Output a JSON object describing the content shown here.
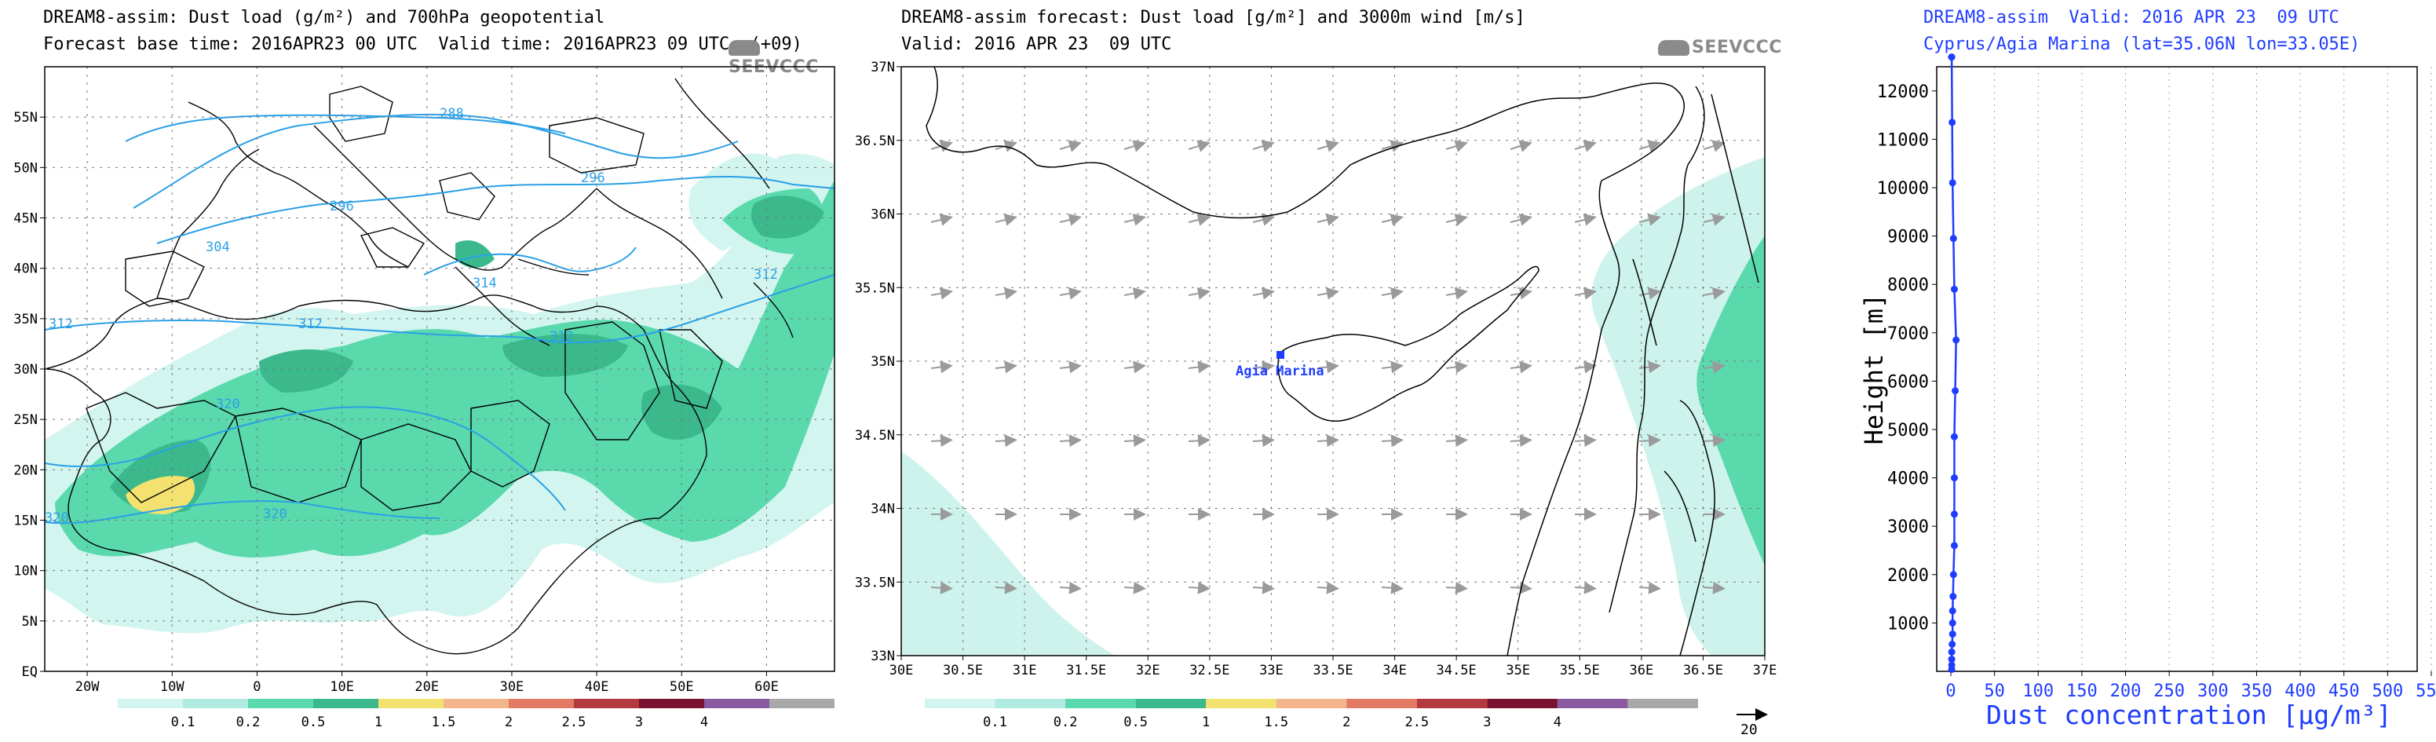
{
  "panel1": {
    "title1": "DREAM8-assim: Dust load (g/m²) and 700hPa geopotential",
    "title2": "Forecast base time: 2016APR23 00 UTC  Valid time: 2016APR23 09 UTC  (+09)",
    "logo": "SEEVCCC"
  },
  "panel2": {
    "title1": "DREAM8-assim forecast: Dust load [g/m²] and 3000m wind [m/s]",
    "title2": "Valid: 2016 APR 23  09 UTC",
    "logo": "SEEVCCC",
    "station_label": "Agia Marina",
    "vector_ref": "20"
  },
  "panel3": {
    "title1": "DREAM8-assim  Valid: 2016 APR 23  09 UTC",
    "title2": "Cyprus/Agia Marina (lat=35.06N lon=33.05E)"
  },
  "colors": {
    "scale": [
      "#d3f5ef",
      "#b0ebe1",
      "#5ad9ad",
      "#3bb98d",
      "#f3e26f",
      "#f2b58c",
      "#e37a63",
      "#b23a3f",
      "#7a1130",
      "#8a5aa0",
      "#a8a8a8"
    ],
    "geopotential": "#2aa0e6",
    "profile": "#1f3dff"
  },
  "colorbar_labels": [
    "0.1",
    "0.2",
    "0.5",
    "1",
    "1.5",
    "2",
    "2.5",
    "3",
    "4"
  ],
  "chart_data": [
    {
      "type": "heatmap",
      "xticks": [
        "20W",
        "10W",
        "0",
        "10E",
        "20E",
        "30E",
        "40E",
        "50E",
        "60E"
      ],
      "yticks": [
        "EQ",
        "5N",
        "10N",
        "15N",
        "20N",
        "25N",
        "30N",
        "35N",
        "40N",
        "45N",
        "50N",
        "55N"
      ],
      "contours": [
        "288",
        "296",
        "304",
        "312",
        "312",
        "312",
        "312",
        "320",
        "320",
        "320",
        "314"
      ]
    },
    {
      "type": "heatmap",
      "xticks": [
        "30E",
        "30.5E",
        "31E",
        "31.5E",
        "32E",
        "32.5E",
        "33E",
        "33.5E",
        "34E",
        "34.5E",
        "35E",
        "35.5E",
        "36E",
        "36.5E",
        "37E"
      ],
      "yticks": [
        "33N",
        "33.5N",
        "34N",
        "34.5N",
        "35N",
        "35.5N",
        "36N",
        "36.5N",
        "37N"
      ]
    },
    {
      "type": "line",
      "xlabel": "Dust concentration [μg/m³]",
      "ylabel": "Height [m]",
      "xlim": [
        0,
        550
      ],
      "ylim": [
        0,
        12500
      ],
      "xticks": [
        "0",
        "50",
        "100",
        "150",
        "200",
        "250",
        "300",
        "350",
        "400",
        "450",
        "500",
        "550"
      ],
      "yticks": [
        "1000",
        "2000",
        "3000",
        "4000",
        "5000",
        "6000",
        "7000",
        "8000",
        "9000",
        "10000",
        "11000",
        "12000"
      ],
      "series": [
        {
          "x": [
            1,
            1,
            1,
            1,
            1.5,
            2,
            2,
            2,
            2.5,
            3,
            4,
            4,
            4,
            4,
            5,
            6,
            4,
            3,
            2,
            1.5,
            1,
            0.8
          ],
          "y": [
            40,
            130,
            250,
            400,
            560,
            770,
            1000,
            1250,
            1550,
            2000,
            2600,
            3250,
            4000,
            4850,
            5800,
            6850,
            7900,
            8950,
            10100,
            11350,
            12700,
            12700
          ]
        }
      ]
    }
  ]
}
